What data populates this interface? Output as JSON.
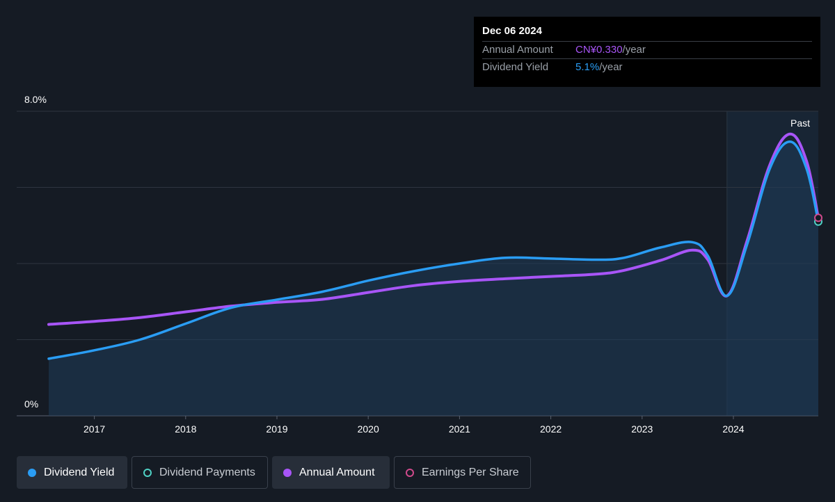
{
  "tooltip": {
    "date": "Dec 06 2024",
    "annual_label": "Annual Amount",
    "annual_value": "CN¥0.330",
    "annual_unit": "/year",
    "yield_label": "Dividend Yield",
    "yield_value": "5.1%",
    "yield_unit": "/year"
  },
  "legend": [
    {
      "label": "Dividend Yield",
      "color": "#2a9df4",
      "filled": true,
      "active": true
    },
    {
      "label": "Dividend Payments",
      "color": "#4fd1c5",
      "filled": false,
      "active": false
    },
    {
      "label": "Annual Amount",
      "color": "#a855f7",
      "filled": true,
      "active": true
    },
    {
      "label": "Earnings Per Share",
      "color": "#d04a8c",
      "filled": false,
      "active": false
    }
  ],
  "colors": {
    "background": "#151b24",
    "past_region": "#1a2a3a",
    "grid": "#2e3540",
    "dividend_yield": "#2a9df4",
    "annual_amount": "#a855f7",
    "area_fill": "#1f3d5a"
  },
  "chart_data": {
    "type": "line",
    "y_tick_labels": [
      "8.0%",
      "0%"
    ],
    "ylim": [
      0,
      8
    ],
    "xlim": [
      2016.5,
      2024.93
    ],
    "x_tick_labels": [
      "2017",
      "2018",
      "2019",
      "2020",
      "2021",
      "2022",
      "2023",
      "2024"
    ],
    "x_ticks": [
      2017,
      2018,
      2019,
      2020,
      2021,
      2022,
      2023,
      2024
    ],
    "past_label": "Past",
    "past_start": 2023.93,
    "grid": true,
    "series": [
      {
        "name": "Dividend Yield",
        "filled_area": true,
        "x": [
          2016.5,
          2017.0,
          2017.5,
          2018.0,
          2018.5,
          2019.0,
          2019.5,
          2020.0,
          2020.5,
          2021.0,
          2021.5,
          2022.0,
          2022.5,
          2022.8,
          2023.2,
          2023.55,
          2023.72,
          2023.93,
          2024.15,
          2024.4,
          2024.62,
          2024.8,
          2024.93
        ],
        "values": [
          1.5,
          1.72,
          2.0,
          2.42,
          2.84,
          3.05,
          3.26,
          3.55,
          3.8,
          4.0,
          4.15,
          4.13,
          4.1,
          4.15,
          4.42,
          4.56,
          4.2,
          3.15,
          4.5,
          6.5,
          7.2,
          6.5,
          5.1
        ]
      },
      {
        "name": "Annual Amount",
        "filled_area": false,
        "x": [
          2016.5,
          2017.0,
          2017.5,
          2018.0,
          2018.5,
          2019.0,
          2019.5,
          2020.0,
          2020.5,
          2021.0,
          2021.5,
          2022.0,
          2022.5,
          2022.8,
          2023.2,
          2023.55,
          2023.72,
          2023.93,
          2024.15,
          2024.4,
          2024.62,
          2024.8,
          2024.93
        ],
        "values": [
          2.4,
          2.48,
          2.58,
          2.73,
          2.88,
          2.98,
          3.06,
          3.24,
          3.42,
          3.53,
          3.6,
          3.66,
          3.72,
          3.82,
          4.08,
          4.35,
          4.1,
          3.15,
          4.6,
          6.6,
          7.4,
          6.7,
          5.2
        ]
      }
    ]
  }
}
